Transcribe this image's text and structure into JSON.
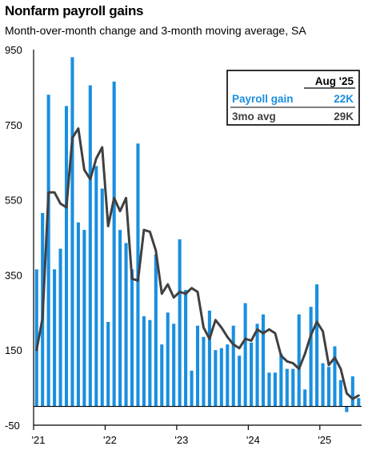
{
  "title": "Nonfarm payroll gains",
  "subtitle": "Month-over-month change and 3-month moving average, SA",
  "colors": {
    "bar": "#1a8fe0",
    "line": "#404040",
    "axis": "#000000"
  },
  "legend": {
    "header": "Aug '25",
    "rows": [
      {
        "label": "Payroll gain",
        "value": "22K",
        "color": "#1a8fe0"
      },
      {
        "label": "3mo avg",
        "value": "29K",
        "color": "#404040"
      }
    ]
  },
  "chart_data": {
    "type": "bar",
    "title": "Nonfarm payroll gains",
    "subtitle": "Month-over-month change and 3-month moving average, SA",
    "ylim": [
      -50,
      950
    ],
    "yticks": [
      950,
      750,
      550,
      350,
      150,
      -50
    ],
    "xtick_labels": [
      "'21",
      "'22",
      "'23",
      "'24",
      "'25"
    ],
    "x_start": "2021-01",
    "series": [
      {
        "name": "Payroll gain",
        "type": "bar",
        "values": [
          365,
          515,
          830,
          365,
          420,
          800,
          930,
          490,
          470,
          855,
          640,
          580,
          225,
          865,
          470,
          435,
          365,
          700,
          240,
          230,
          405,
          165,
          250,
          220,
          445,
          310,
          95,
          215,
          185,
          255,
          150,
          155,
          165,
          215,
          135,
          275,
          170,
          220,
          245,
          90,
          90,
          140,
          100,
          100,
          245,
          45,
          265,
          325,
          115,
          105,
          160,
          70,
          -15,
          80,
          22
        ]
      },
      {
        "name": "3mo avg",
        "type": "line",
        "values": [
          150,
          235,
          570,
          570,
          540,
          530,
          715,
          740,
          630,
          605,
          660,
          690,
          480,
          555,
          520,
          555,
          340,
          335,
          470,
          465,
          415,
          300,
          325,
          290,
          305,
          300,
          315,
          305,
          210,
          180,
          230,
          210,
          185,
          165,
          155,
          180,
          175,
          205,
          195,
          205,
          195,
          135,
          120,
          115,
          100,
          140,
          190,
          225,
          200,
          110,
          130,
          100,
          35,
          20,
          29
        ]
      }
    ]
  }
}
